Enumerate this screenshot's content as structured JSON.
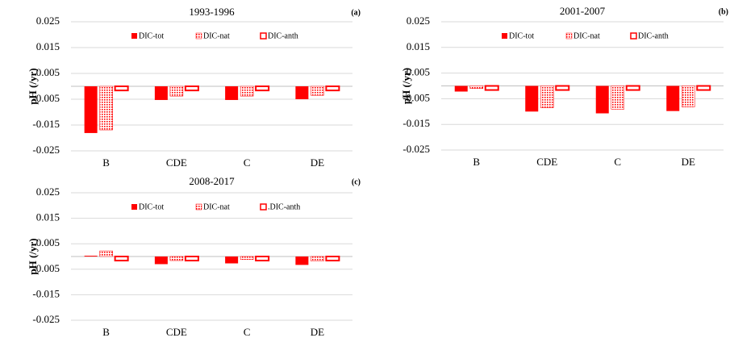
{
  "chart_data": [
    {
      "type": "bar",
      "title": "1993-1996",
      "panel_label": "(a)",
      "y_label": "pH (/yr)",
      "categories": [
        "B",
        "CDE",
        "C",
        "DE"
      ],
      "series": [
        {
          "name": "DIC-tot",
          "color": "#ff0000",
          "pattern": "solid",
          "values": [
            -0.0181,
            -0.0053,
            -0.0053,
            -0.005
          ]
        },
        {
          "name": "DIC-nat",
          "color": "#ff0000",
          "pattern": "dots",
          "values": [
            -0.0169,
            -0.0038,
            -0.0038,
            -0.0035
          ]
        },
        {
          "name": "DIC-anth",
          "color": "#ff0000",
          "pattern": "hollow",
          "values": [
            -0.0016,
            -0.0016,
            -0.0016,
            -0.0016
          ]
        }
      ],
      "ylim": [
        -0.025,
        0.025
      ],
      "yticks": [
        -0.025,
        -0.015,
        -0.005,
        0.005,
        0.015,
        0.025
      ],
      "grid": true
    },
    {
      "type": "bar",
      "title": "2001-2007",
      "panel_label": "(b)",
      "y_label": "pH (/yr)",
      "categories": [
        "B",
        "CDE",
        "C",
        "DE"
      ],
      "series": [
        {
          "name": "DIC-tot",
          "color": "#ff0000",
          "pattern": "solid",
          "values": [
            -0.0022,
            -0.01,
            -0.0107,
            -0.0098
          ]
        },
        {
          "name": "DIC-nat",
          "color": "#ff0000",
          "pattern": "dots",
          "values": [
            -0.001,
            -0.0085,
            -0.0091,
            -0.0082
          ]
        },
        {
          "name": "DIC-anth",
          "color": "#ff0000",
          "pattern": "hollow",
          "values": [
            -0.0016,
            -0.0016,
            -0.0016,
            -0.0016
          ]
        }
      ],
      "ylim": [
        -0.025,
        0.025
      ],
      "yticks": [
        -0.025,
        -0.015,
        -0.005,
        0.005,
        0.015,
        0.025
      ],
      "grid": true
    },
    {
      "type": "bar",
      "title": "2008-2017",
      "panel_label": "(c)",
      "y_label": "pH (/yr)",
      "categories": [
        "B",
        "CDE",
        "C",
        "DE"
      ],
      "series": [
        {
          "name": "DIC-tot",
          "color": "#ff0000",
          "pattern": "solid",
          "values": [
            0.0003,
            -0.003,
            -0.0027,
            -0.0033
          ]
        },
        {
          "name": "DIC-nat",
          "color": "#ff0000",
          "pattern": "dots",
          "values": [
            0.0022,
            -0.0016,
            -0.0012,
            -0.0018
          ]
        },
        {
          "name": ".DIC-anth",
          "color": "#ff0000",
          "pattern": "hollow",
          "values": [
            -0.0016,
            -0.0016,
            -0.0016,
            -0.0016
          ]
        }
      ],
      "ylim": [
        -0.025,
        0.025
      ],
      "yticks": [
        -0.025,
        -0.015,
        -0.005,
        0.005,
        0.015,
        0.025
      ],
      "grid": true
    }
  ]
}
